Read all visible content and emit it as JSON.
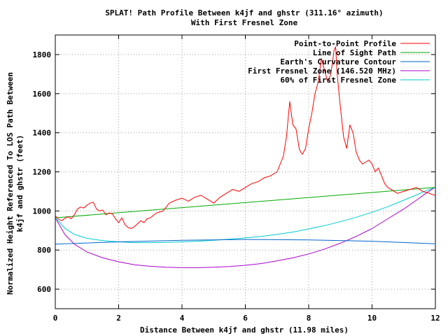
{
  "chart_data": {
    "type": "line",
    "title": "SPLAT! Path Profile Between k4jf and ghstr (311.16° azimuth)",
    "subtitle": "With First Fresnel Zone",
    "xlabel": "Distance Between k4jf and ghstr (11.98 miles)",
    "ylabel_line1": "Normalized Height Referenced To LOS Path Between",
    "ylabel_line2": "k4jf and ghstr (feet)",
    "xlim": [
      0,
      12
    ],
    "ylim": [
      500,
      1900
    ],
    "xticks": [
      0,
      2,
      4,
      6,
      8,
      10,
      12
    ],
    "xtick_labels": [
      "0",
      "2",
      "4",
      "6",
      "8",
      "10",
      "12"
    ],
    "yticks": [
      600,
      800,
      1000,
      1200,
      1400,
      1600,
      1800
    ],
    "ytick_labels": [
      "600",
      "800",
      "1000",
      "1200",
      "1400",
      "1600",
      "1800"
    ],
    "grid": true,
    "legend_position": "top-right",
    "series": [
      {
        "name": "Point-to-Point Profile",
        "color": "#ff0000",
        "x": [
          0,
          0.1,
          0.2,
          0.3,
          0.4,
          0.5,
          0.6,
          0.7,
          0.8,
          0.9,
          1.0,
          1.1,
          1.2,
          1.3,
          1.4,
          1.5,
          1.6,
          1.7,
          1.8,
          1.9,
          2.0,
          2.1,
          2.2,
          2.3,
          2.4,
          2.5,
          2.6,
          2.7,
          2.8,
          2.9,
          3.0,
          3.2,
          3.4,
          3.6,
          3.8,
          4.0,
          4.2,
          4.4,
          4.6,
          4.8,
          5.0,
          5.2,
          5.4,
          5.6,
          5.8,
          6.0,
          6.2,
          6.4,
          6.6,
          6.8,
          7.0,
          7.2,
          7.3,
          7.4,
          7.5,
          7.6,
          7.7,
          7.75,
          7.8,
          7.9,
          8.0,
          8.1,
          8.2,
          8.3,
          8.4,
          8.5,
          8.6,
          8.7,
          8.8,
          8.85,
          8.9,
          9.0,
          9.1,
          9.2,
          9.3,
          9.4,
          9.5,
          9.6,
          9.7,
          9.8,
          9.9,
          10.0,
          10.1,
          10.2,
          10.3,
          10.4,
          10.5,
          10.6,
          10.8,
          11.0,
          11.2,
          11.4,
          11.6,
          11.8,
          11.98
        ],
        "values": [
          975,
          958,
          950,
          962,
          970,
          960,
          980,
          1010,
          1020,
          1015,
          1030,
          1040,
          1045,
          1010,
          1000,
          1005,
          980,
          990,
          985,
          960,
          940,
          965,
          930,
          915,
          910,
          920,
          935,
          950,
          940,
          960,
          965,
          990,
          1000,
          1040,
          1055,
          1065,
          1050,
          1070,
          1080,
          1060,
          1040,
          1070,
          1090,
          1110,
          1100,
          1120,
          1140,
          1150,
          1170,
          1180,
          1200,
          1280,
          1380,
          1560,
          1440,
          1420,
          1320,
          1300,
          1290,
          1320,
          1420,
          1500,
          1600,
          1660,
          1780,
          1720,
          1660,
          1700,
          1820,
          1840,
          1700,
          1530,
          1380,
          1320,
          1440,
          1400,
          1300,
          1260,
          1240,
          1250,
          1260,
          1240,
          1200,
          1220,
          1180,
          1140,
          1120,
          1110,
          1090,
          1100,
          1110,
          1120,
          1100,
          1090,
          1080
        ]
      },
      {
        "name": "Line of Sight Path",
        "color": "#00aa00",
        "x": [
          0,
          11.98
        ],
        "values": [
          965,
          1120
        ]
      },
      {
        "name": "Earth's Curvature Contour",
        "color": "#0066cc",
        "x": [
          0,
          2,
          4,
          6,
          8,
          10,
          11.98
        ],
        "values": [
          830,
          842,
          850,
          854,
          852,
          845,
          832
        ]
      },
      {
        "name": "First Fresnel Zone (146.520 MHz)",
        "color": "#aa00cc",
        "x": [
          0,
          0.3,
          0.6,
          1.0,
          1.5,
          2.0,
          2.5,
          3.0,
          3.5,
          4.0,
          4.5,
          5.0,
          5.5,
          6.0,
          6.5,
          7.0,
          7.5,
          8.0,
          8.5,
          9.0,
          9.5,
          10.0,
          10.5,
          11.0,
          11.4,
          11.7,
          11.98
        ],
        "values": [
          965,
          880,
          830,
          790,
          760,
          740,
          725,
          717,
          712,
          710,
          710,
          712,
          716,
          722,
          731,
          745,
          760,
          780,
          805,
          835,
          870,
          910,
          960,
          1010,
          1055,
          1090,
          1120
        ]
      },
      {
        "name": "60% of First Fresnel Zone",
        "color": "#00cccc",
        "x": [
          0,
          0.3,
          0.6,
          1.0,
          1.5,
          2.0,
          2.5,
          3.0,
          3.5,
          4.0,
          4.5,
          5.0,
          5.5,
          6.0,
          6.5,
          7.0,
          7.5,
          8.0,
          8.5,
          9.0,
          9.5,
          10.0,
          10.5,
          11.0,
          11.4,
          11.7,
          11.98
        ],
        "values": [
          965,
          912,
          880,
          860,
          848,
          842,
          838,
          838,
          839,
          842,
          845,
          850,
          856,
          862,
          870,
          880,
          892,
          908,
          925,
          945,
          968,
          993,
          1022,
          1055,
          1082,
          1103,
          1120
        ]
      }
    ]
  }
}
